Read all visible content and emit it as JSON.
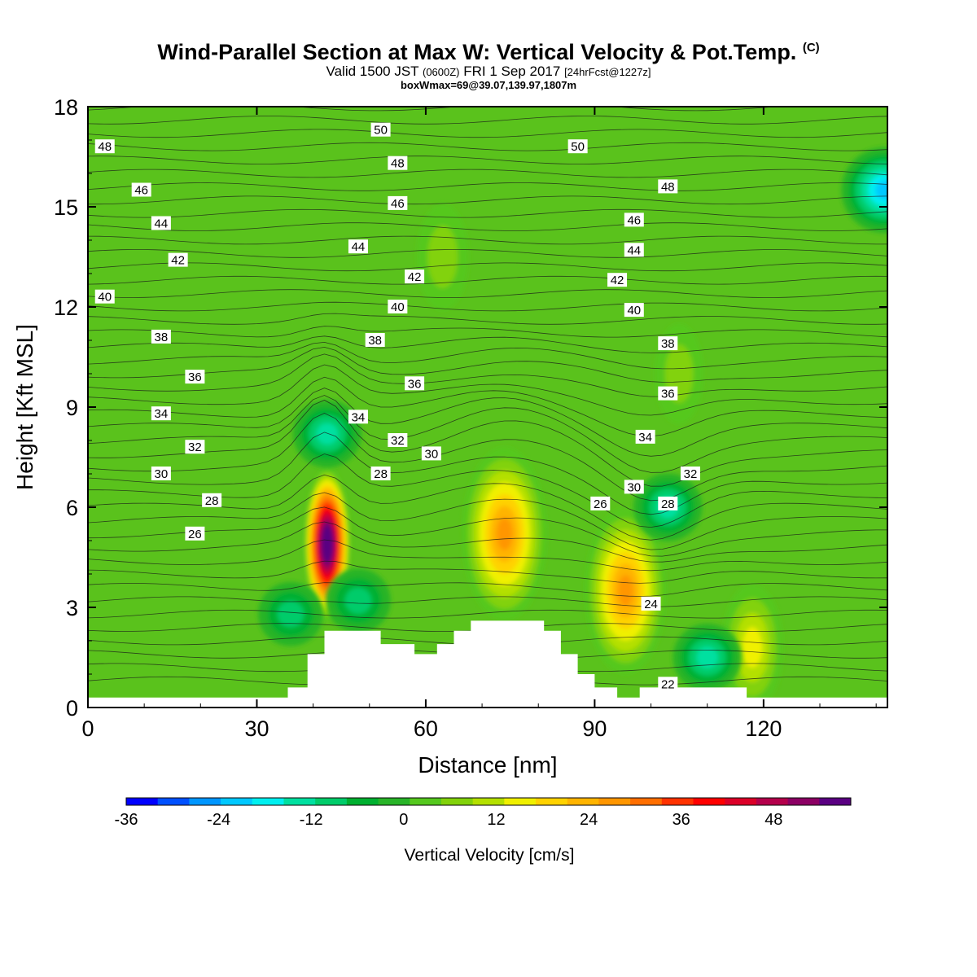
{
  "header": {
    "title": "Wind-Parallel Section at Max W: Vertical Velocity & Pot.Temp.",
    "copyright_mark": "(C)",
    "valid_prefix": "Valid 1500 JST",
    "valid_utc": "(0600Z)",
    "valid_date": "FRI 1 Sep 2017",
    "forecast_info": "[24hrFcst@1227z]",
    "box_info": "boxWmax=69@39.07,139.97,1807m"
  },
  "chart_data": {
    "type": "heatmap",
    "title": "Wind-Parallel Section at Max W: Vertical Velocity & Pot.Temp.",
    "xlabel": "Distance [nm]",
    "ylabel": "Height [Kft MSL]",
    "xlim": [
      0,
      142
    ],
    "ylim": [
      0,
      18
    ],
    "x_ticks": [
      0,
      30,
      60,
      90,
      120
    ],
    "y_ticks": [
      0,
      3,
      6,
      9,
      12,
      15,
      18
    ],
    "fill_variable": "Vertical Velocity [cm/s]",
    "contour_variable": "Potential Temperature",
    "colorbar": {
      "label": "Vertical Velocity [cm/s]",
      "min": -36,
      "max": 54,
      "step": 4,
      "tick_labels": [
        -36,
        -24,
        -12,
        0,
        12,
        24,
        36,
        48
      ],
      "colors": [
        "#0000ff",
        "#0050ff",
        "#0096ff",
        "#00c8ff",
        "#00f0f0",
        "#00e0a0",
        "#00cc6a",
        "#00b030",
        "#28b428",
        "#55c81e",
        "#82d20a",
        "#b4e000",
        "#f0f000",
        "#ffd200",
        "#ffb400",
        "#ff9600",
        "#ff6e00",
        "#ff3200",
        "#ff0000",
        "#dc0028",
        "#b4004b",
        "#8c0064",
        "#5a0082"
      ]
    },
    "terrain_profile": [
      [
        0,
        0.3
      ],
      [
        35.5,
        0.3
      ],
      [
        35.5,
        0.6
      ],
      [
        39,
        0.6
      ],
      [
        39,
        1.6
      ],
      [
        42,
        1.6
      ],
      [
        42,
        2.3
      ],
      [
        52,
        2.3
      ],
      [
        52,
        1.9
      ],
      [
        58,
        1.9
      ],
      [
        58,
        1.6
      ],
      [
        62,
        1.6
      ],
      [
        62,
        1.9
      ],
      [
        65,
        1.9
      ],
      [
        65,
        2.3
      ],
      [
        68,
        2.3
      ],
      [
        68,
        2.6
      ],
      [
        81,
        2.6
      ],
      [
        81,
        2.3
      ],
      [
        84,
        2.3
      ],
      [
        84,
        1.6
      ],
      [
        87,
        1.6
      ],
      [
        87,
        1.0
      ],
      [
        90,
        1.0
      ],
      [
        90,
        0.6
      ],
      [
        94,
        0.6
      ],
      [
        94,
        0.3
      ],
      [
        98,
        0.3
      ],
      [
        98,
        0.6
      ],
      [
        117,
        0.6
      ],
      [
        117,
        0.3
      ],
      [
        142,
        0.3
      ]
    ],
    "features": [
      {
        "type": "updraft",
        "x": 42.5,
        "z": 4.9,
        "peak": 69,
        "label": "max"
      },
      {
        "type": "updraft",
        "x": 74,
        "z": 5.2,
        "peak": 28
      },
      {
        "type": "updraft",
        "x": 95.5,
        "z": 3.5,
        "peak": 26
      },
      {
        "type": "updraft",
        "x": 118,
        "z": 1.8,
        "peak": 14
      },
      {
        "type": "updraft",
        "x": 63,
        "z": 13.5,
        "peak": 8
      },
      {
        "type": "updraft",
        "x": 105,
        "z": 10,
        "peak": 6
      },
      {
        "type": "downdraft",
        "x": 42.5,
        "z": 8.2,
        "peak": -14
      },
      {
        "type": "downdraft",
        "x": 103,
        "z": 6.0,
        "peak": -14
      },
      {
        "type": "downdraft",
        "x": 110,
        "z": 1.5,
        "peak": -14
      },
      {
        "type": "downdraft",
        "x": 36,
        "z": 2.8,
        "peak": -12
      },
      {
        "type": "downdraft",
        "x": 48,
        "z": 3.2,
        "peak": -12
      },
      {
        "type": "downdraft",
        "x": 141.5,
        "z": 15.5,
        "peak": -24
      }
    ],
    "isentrope_labels": [
      {
        "value": "48",
        "x": 3,
        "z": 16.8
      },
      {
        "value": "46",
        "x": 9.5,
        "z": 15.5
      },
      {
        "value": "44",
        "x": 13,
        "z": 14.5
      },
      {
        "value": "42",
        "x": 16,
        "z": 13.4
      },
      {
        "value": "40",
        "x": 3,
        "z": 12.3
      },
      {
        "value": "38",
        "x": 13,
        "z": 11.1
      },
      {
        "value": "36",
        "x": 19,
        "z": 9.9
      },
      {
        "value": "34",
        "x": 13,
        "z": 8.8
      },
      {
        "value": "32",
        "x": 19,
        "z": 7.8
      },
      {
        "value": "30",
        "x": 13,
        "z": 7.0
      },
      {
        "value": "28",
        "x": 22,
        "z": 6.2
      },
      {
        "value": "26",
        "x": 19,
        "z": 5.2
      },
      {
        "value": "50",
        "x": 52,
        "z": 17.3
      },
      {
        "value": "48",
        "x": 55,
        "z": 16.3
      },
      {
        "value": "46",
        "x": 55,
        "z": 15.1
      },
      {
        "value": "44",
        "x": 48,
        "z": 13.8
      },
      {
        "value": "42",
        "x": 58,
        "z": 12.9
      },
      {
        "value": "40",
        "x": 55,
        "z": 12.0
      },
      {
        "value": "38",
        "x": 51,
        "z": 11.0
      },
      {
        "value": "36",
        "x": 58,
        "z": 9.7
      },
      {
        "value": "34",
        "x": 48,
        "z": 8.7
      },
      {
        "value": "32",
        "x": 55,
        "z": 8.0
      },
      {
        "value": "30",
        "x": 61,
        "z": 7.6
      },
      {
        "value": "28",
        "x": 52,
        "z": 7.0
      },
      {
        "value": "50",
        "x": 87,
        "z": 16.8
      },
      {
        "value": "48",
        "x": 103,
        "z": 15.6
      },
      {
        "value": "46",
        "x": 97,
        "z": 14.6
      },
      {
        "value": "44",
        "x": 97,
        "z": 13.7
      },
      {
        "value": "42",
        "x": 94,
        "z": 12.8
      },
      {
        "value": "40",
        "x": 97,
        "z": 11.9
      },
      {
        "value": "38",
        "x": 103,
        "z": 10.9
      },
      {
        "value": "36",
        "x": 103,
        "z": 9.4
      },
      {
        "value": "34",
        "x": 99,
        "z": 8.1
      },
      {
        "value": "30",
        "x": 97,
        "z": 6.6
      },
      {
        "value": "32",
        "x": 107,
        "z": 7.0
      },
      {
        "value": "28",
        "x": 103,
        "z": 6.1
      },
      {
        "value": "26",
        "x": 91,
        "z": 6.1
      },
      {
        "value": "24",
        "x": 100,
        "z": 3.1
      },
      {
        "value": "22",
        "x": 103,
        "z": 0.7
      }
    ]
  }
}
